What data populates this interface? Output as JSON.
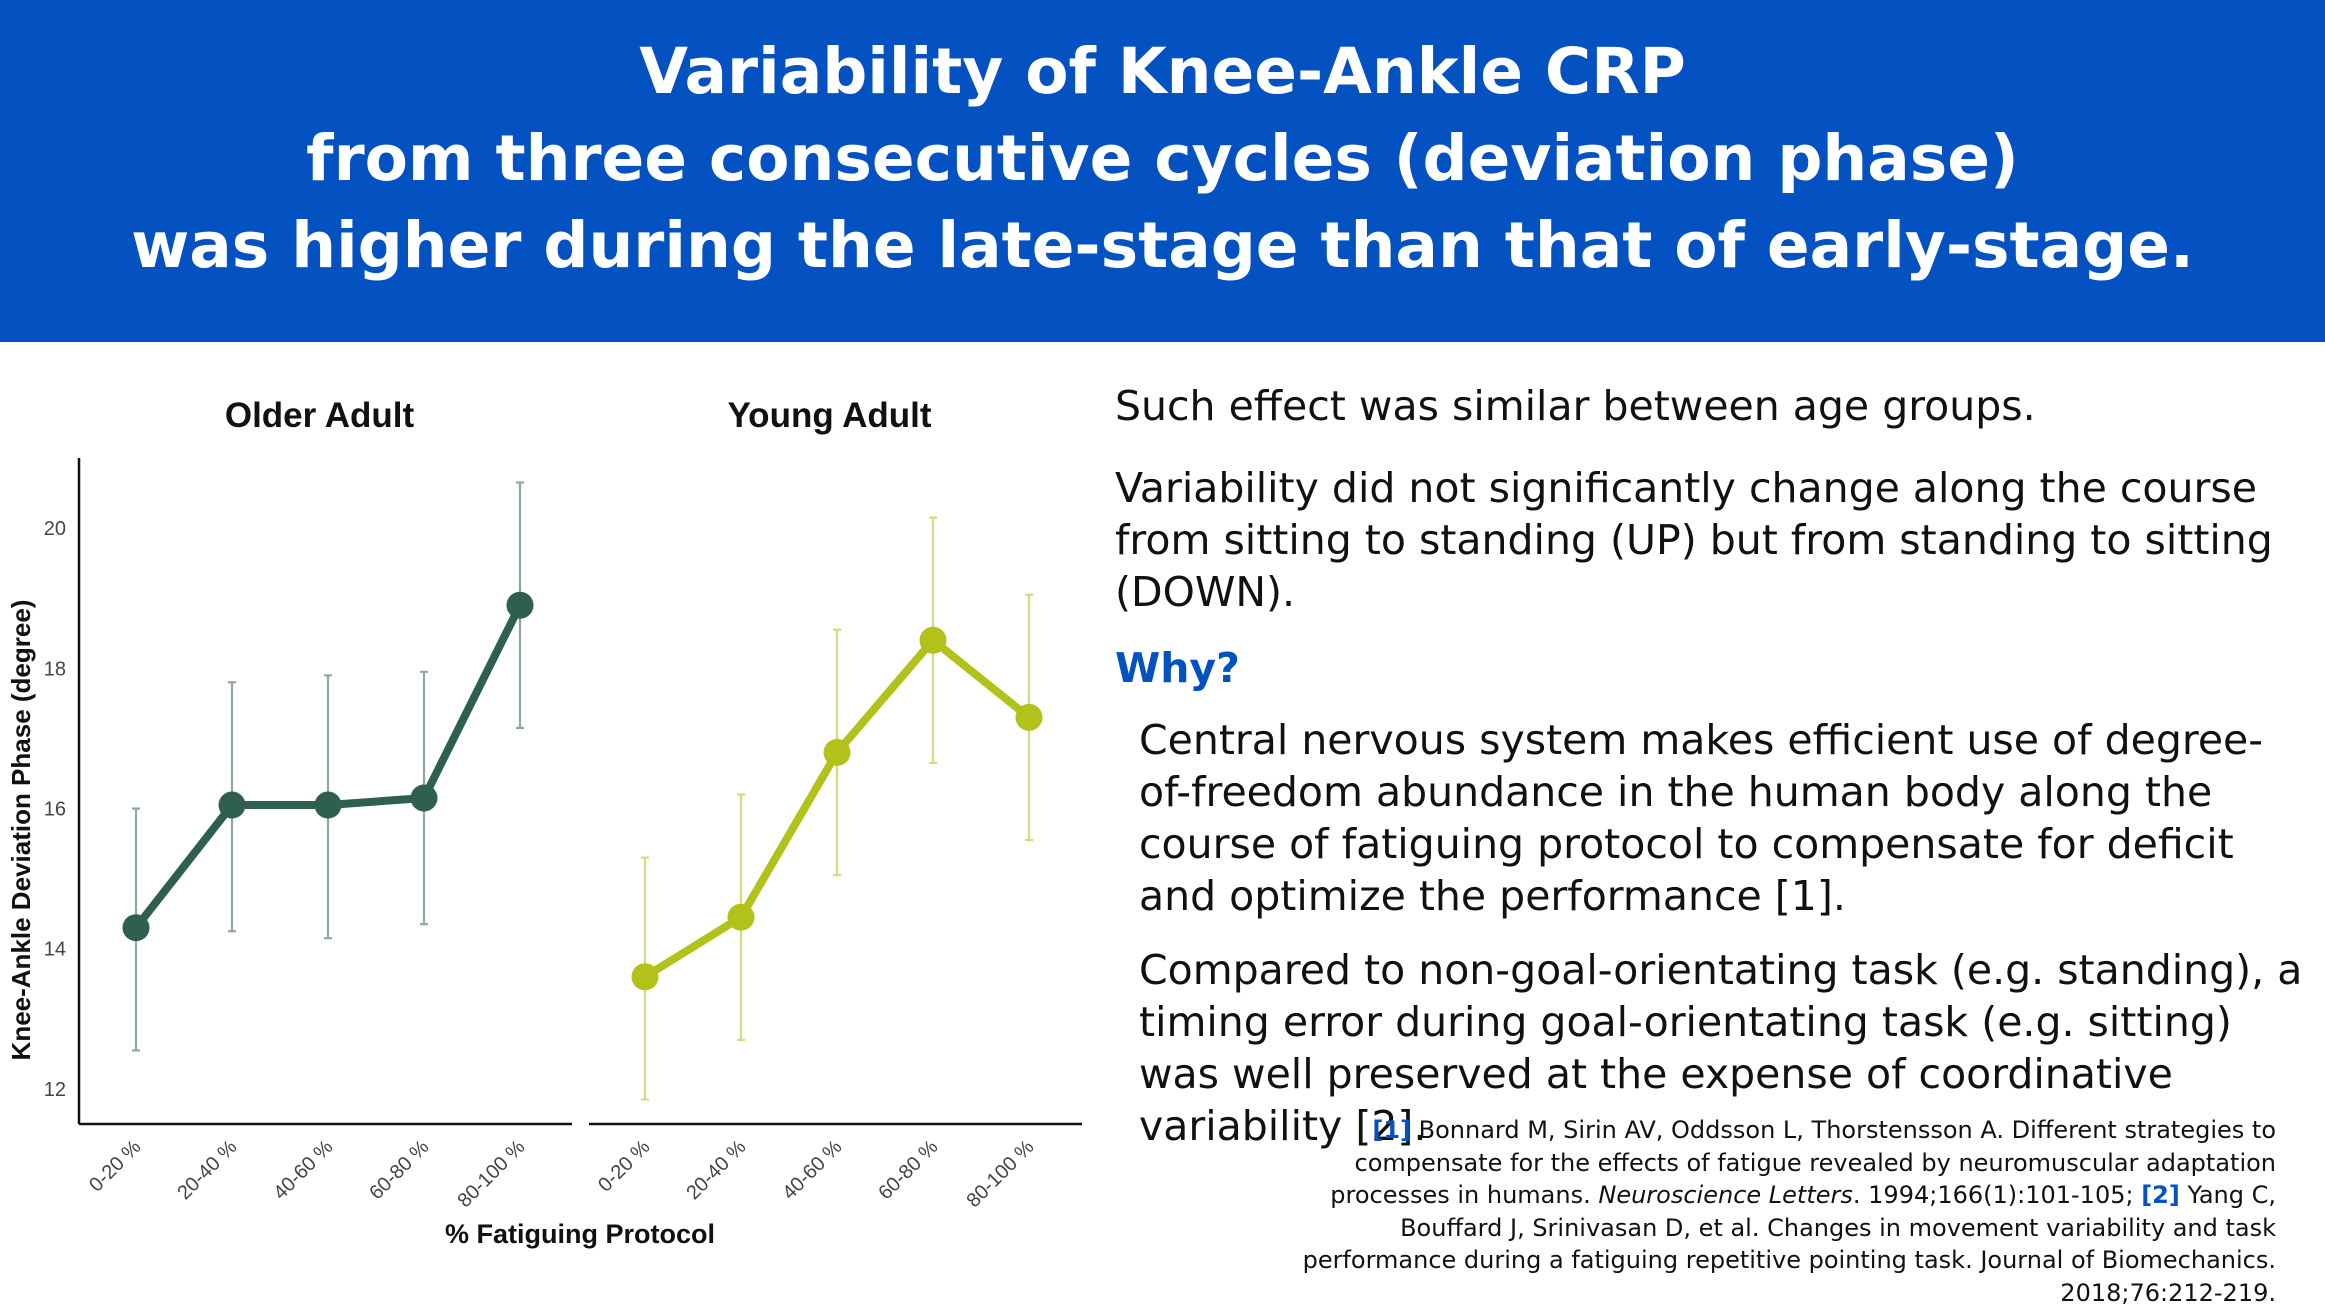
{
  "banner": {
    "lines": [
      "Variability of Knee-Ankle CRP",
      "from three consecutive cycles (deviation phase)",
      "was higher during the late-stage than that of early-stage."
    ]
  },
  "chart_data": {
    "type": "line",
    "ylabel": "Knee-Ankle Deviation Phase (degree)",
    "xlabel": "% Fatiguing Protocol",
    "ylim": [
      11.5,
      21.0
    ],
    "yticks": [
      "12",
      "14",
      "16",
      "18",
      "20"
    ],
    "categories": [
      "0-20 %",
      "20-40 %",
      "40-60 %",
      "60-80 %",
      "80-100 %"
    ],
    "panels": [
      {
        "title": "Older Adult",
        "color": "#2f5f4f",
        "errcolor": "#8fa89f",
        "values": [
          14.3,
          16.05,
          16.05,
          16.15,
          18.9
        ],
        "err_low": [
          12.55,
          14.25,
          14.15,
          14.35,
          17.15
        ],
        "err_high": [
          16.0,
          17.8,
          17.9,
          17.95,
          20.65
        ]
      },
      {
        "title": "Young Adult",
        "color": "#b2c21b",
        "errcolor": "#d3dc7c",
        "values": [
          13.6,
          14.45,
          16.8,
          18.4,
          17.3
        ],
        "err_low": [
          11.85,
          12.7,
          15.05,
          16.65,
          15.55
        ],
        "err_high": [
          15.3,
          16.2,
          18.55,
          20.15,
          19.05
        ]
      }
    ]
  },
  "text": {
    "statement1": "Such effect was similar between age groups.",
    "statement2": "Variability did not significantly change along the course from sitting to standing (UP) but from standing to sitting (DOWN).",
    "why": "Why?",
    "reason1": "Central nervous system makes efficient use of degree-of-freedom abundance in the human body along the course of fatiguing protocol to compensate for deficit and optimize the performance [1].",
    "reason2": "Compared to non-goal-orientating task (e.g. standing), a timing error during goal-orientating task (e.g. sitting) was well preserved at the expense of coordinative variability [2]."
  },
  "references": {
    "ref1_num": "[1]",
    "ref1_text": " Bonnard M, Sirin AV, Oddsson L, Thorstensson A. Different strategies to compensate for the effects of fatigue revealed by neuromuscular adaptation processes in humans. ",
    "ref1_journal": "Neuroscience Letters",
    "ref1_tail": ". 1994;166(1):101-105; ",
    "ref2_num": "[2]",
    "ref2_text": " Yang C, Bouffard J, Srinivasan D, et al. Changes in movement variability and task performance during a fatiguing repetitive pointing task. Journal of Biomechanics. 2018;76:212-219."
  }
}
